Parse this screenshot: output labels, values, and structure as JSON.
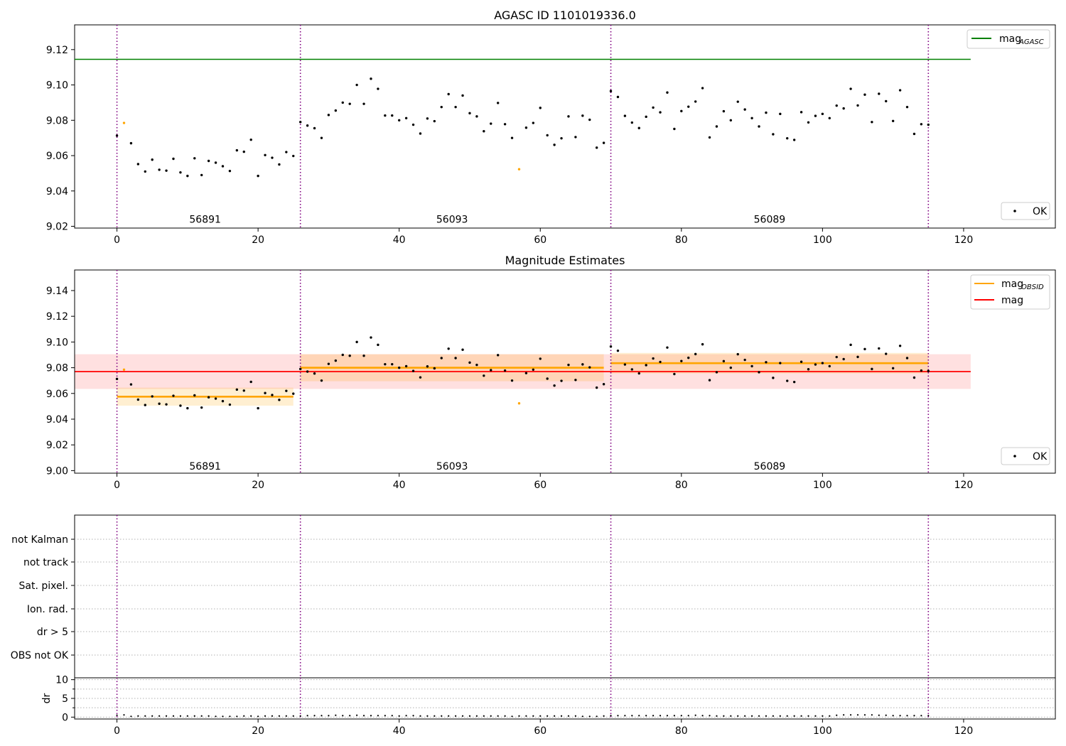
{
  "figure_title": "AGASC ID 1101019336.0",
  "chart_data": [
    {
      "type": "scatter",
      "title": "",
      "xlim": [
        -6,
        133
      ],
      "ylim": [
        9.019,
        9.134
      ],
      "x_ticks": [
        0,
        20,
        40,
        60,
        80,
        100,
        120
      ],
      "y_ticks": [
        9.02,
        9.04,
        9.06,
        9.08,
        9.1,
        9.12
      ],
      "y_tick_labels": [
        "9.02",
        "9.04",
        "9.06",
        "9.08",
        "9.10",
        "9.12"
      ],
      "mag_agasc": 9.1145,
      "mag_agasc_x": [
        -6,
        121
      ],
      "legend_top": {
        "label": "mag",
        "sub": "AGASC",
        "color": "#008000"
      },
      "legend_bottom": {
        "label": "OK"
      },
      "annotation_y": 9.024
    },
    {
      "type": "scatter",
      "title": "Magnitude Estimates",
      "xlim": [
        -6,
        133
      ],
      "ylim": [
        8.998,
        9.156
      ],
      "x_ticks": [
        0,
        20,
        40,
        60,
        80,
        100,
        120
      ],
      "y_ticks": [
        9.0,
        9.02,
        9.04,
        9.06,
        9.08,
        9.1,
        9.12,
        9.14
      ],
      "y_tick_labels": [
        "9.00",
        "9.02",
        "9.04",
        "9.06",
        "9.08",
        "9.10",
        "9.12",
        "9.14"
      ],
      "mag": {
        "value": 9.077,
        "low": 9.0635,
        "high": 9.0905,
        "x": [
          -6,
          121
        ],
        "color": "#ff0000"
      },
      "mag_obsid": [
        {
          "obsid": "56891",
          "x": [
            0,
            25
          ],
          "value": 9.0575,
          "low": 9.0505,
          "high": 9.0645
        },
        {
          "obsid": "56093",
          "x": [
            26,
            69
          ],
          "value": 9.08,
          "low": 9.0695,
          "high": 9.0905
        },
        {
          "obsid": "56089",
          "x": [
            70,
            115
          ],
          "value": 9.0835,
          "low": 9.0755,
          "high": 9.0915
        }
      ],
      "legend_top": [
        {
          "label": "mag",
          "sub": "OBSID",
          "color": "#ffa500"
        },
        {
          "label": "mag",
          "sub": "",
          "color": "#ff0000"
        }
      ],
      "legend_bottom": {
        "label": "OK"
      },
      "annotation_y": 9.0035
    },
    {
      "type": "scatter",
      "title": "",
      "category_labels": [
        "not Kalman",
        "not track",
        "Sat. pixel.",
        "Ion. rad.",
        "dr > 5",
        "OBS not OK"
      ],
      "flag_points": []
    },
    {
      "type": "scatter",
      "title": "",
      "ylabel": "dr",
      "xlim": [
        -6,
        133
      ],
      "ylim": [
        -0.5,
        10.5
      ],
      "x_ticks": [
        0,
        20,
        40,
        60,
        80,
        100,
        120
      ],
      "y_ticks": [
        0,
        5,
        10
      ],
      "y_tick_labels": [
        "0",
        "5",
        "10"
      ],
      "dr_values": [
        0.5,
        0.6,
        0.2,
        0.3,
        0.3,
        0.3,
        0.3,
        0.3,
        0.3,
        0.3,
        0.3,
        0.3,
        0.3,
        0.3,
        0.2,
        0.2,
        0.2,
        0.2,
        0.3,
        0.3,
        0.2,
        0.3,
        0.3,
        0.3,
        0.3,
        0.3,
        0.3,
        0.4,
        0.4,
        0.4,
        0.4,
        0.5,
        0.4,
        0.4,
        0.5,
        0.4,
        0.4,
        0.4,
        0.4,
        0.4,
        0.3,
        0.4,
        0.4,
        0.3,
        0.3,
        0.3,
        0.3,
        0.3,
        0.3,
        0.3,
        0.3,
        0.3,
        0.3,
        0.3,
        0.3,
        0.3,
        0.2,
        0.3,
        0.3,
        0.3,
        0.3,
        0.3,
        0.3,
        0.3,
        0.3,
        0.3,
        0.2,
        0.2,
        0.2,
        0.3,
        0.4,
        0.4,
        0.4,
        0.4,
        0.4,
        0.4,
        0.4,
        0.4,
        0.4,
        0.4,
        0.4,
        0.4,
        0.5,
        0.4,
        0.4,
        0.3,
        0.3,
        0.3,
        0.3,
        0.3,
        0.3,
        0.3,
        0.3,
        0.3,
        0.3,
        0.3,
        0.3,
        0.3,
        0.3,
        0.3,
        0.3,
        0.3,
        0.5,
        0.6,
        0.6,
        0.6,
        0.6,
        0.6,
        0.5,
        0.5,
        0.4,
        0.4,
        0.4,
        0.4,
        0.4,
        0.4
      ]
    }
  ],
  "obs_boundaries": [
    0,
    26,
    70,
    115
  ],
  "obsids": [
    {
      "label": "56891",
      "x": 12.5
    },
    {
      "label": "56093",
      "x": 47.5
    },
    {
      "label": "56089",
      "x": 92.5
    }
  ],
  "mags": [
    9.0713,
    9.0785,
    9.067,
    9.0552,
    9.051,
    9.0577,
    9.052,
    9.0515,
    9.0582,
    9.0505,
    9.0485,
    9.0585,
    9.049,
    9.057,
    9.056,
    9.054,
    9.0513,
    9.063,
    9.0622,
    9.069,
    9.0485,
    9.0603,
    9.0588,
    9.055,
    9.062,
    9.0598,
    9.079,
    9.077,
    9.0755,
    9.07,
    9.083,
    9.0855,
    9.09,
    9.0893,
    9.1,
    9.0893,
    9.1035,
    9.0978,
    9.0827,
    9.0827,
    9.08,
    9.0812,
    9.0775,
    9.0725,
    9.081,
    9.0795,
    9.0875,
    9.0948,
    9.0875,
    9.094,
    9.084,
    9.0822,
    9.0738,
    9.0781,
    9.0898,
    9.0778,
    9.07,
    9.0523,
    9.0758,
    9.0785,
    9.087,
    9.0715,
    9.0661,
    9.0698,
    9.0822,
    9.0705,
    9.0826,
    9.0803,
    9.0645,
    9.0672,
    9.0965,
    9.0932,
    9.0825,
    9.0787,
    9.0756,
    9.082,
    9.0872,
    9.0845,
    9.0957,
    9.0751,
    9.0852,
    9.0877,
    9.0906,
    9.0982,
    9.0703,
    9.0765,
    9.0851,
    9.08,
    9.0905,
    9.0861,
    9.0812,
    9.0765,
    9.0843,
    9.0721,
    9.0836,
    9.0698,
    9.0689,
    9.0846,
    9.0788,
    9.0825,
    9.0836,
    9.0812,
    9.0883,
    9.0867,
    9.0978,
    9.0884,
    9.0945,
    9.079,
    9.095,
    9.0908,
    9.0796,
    9.097,
    9.0875,
    9.0723,
    9.0778,
    9.0775
  ],
  "orange_indices": [
    1,
    57
  ],
  "colors": {
    "ok": "#000000",
    "not_ok": "#ffa500",
    "agasc": "#008000",
    "mag": "#ff0000",
    "obsid": "#ffa500",
    "boundary": "#800080"
  }
}
